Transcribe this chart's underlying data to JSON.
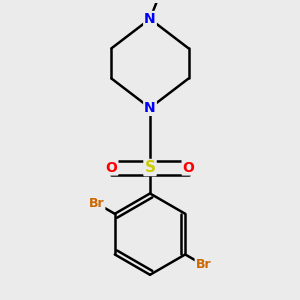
{
  "background_color": "#ebebeb",
  "bond_color": "#000000",
  "bond_width": 1.8,
  "atom_colors": {
    "N": "#0000FF",
    "S": "#CCCC00",
    "O": "#FF0000",
    "Br": "#CC6600",
    "C": "#000000"
  },
  "figsize": [
    3.0,
    3.0
  ],
  "dpi": 100
}
